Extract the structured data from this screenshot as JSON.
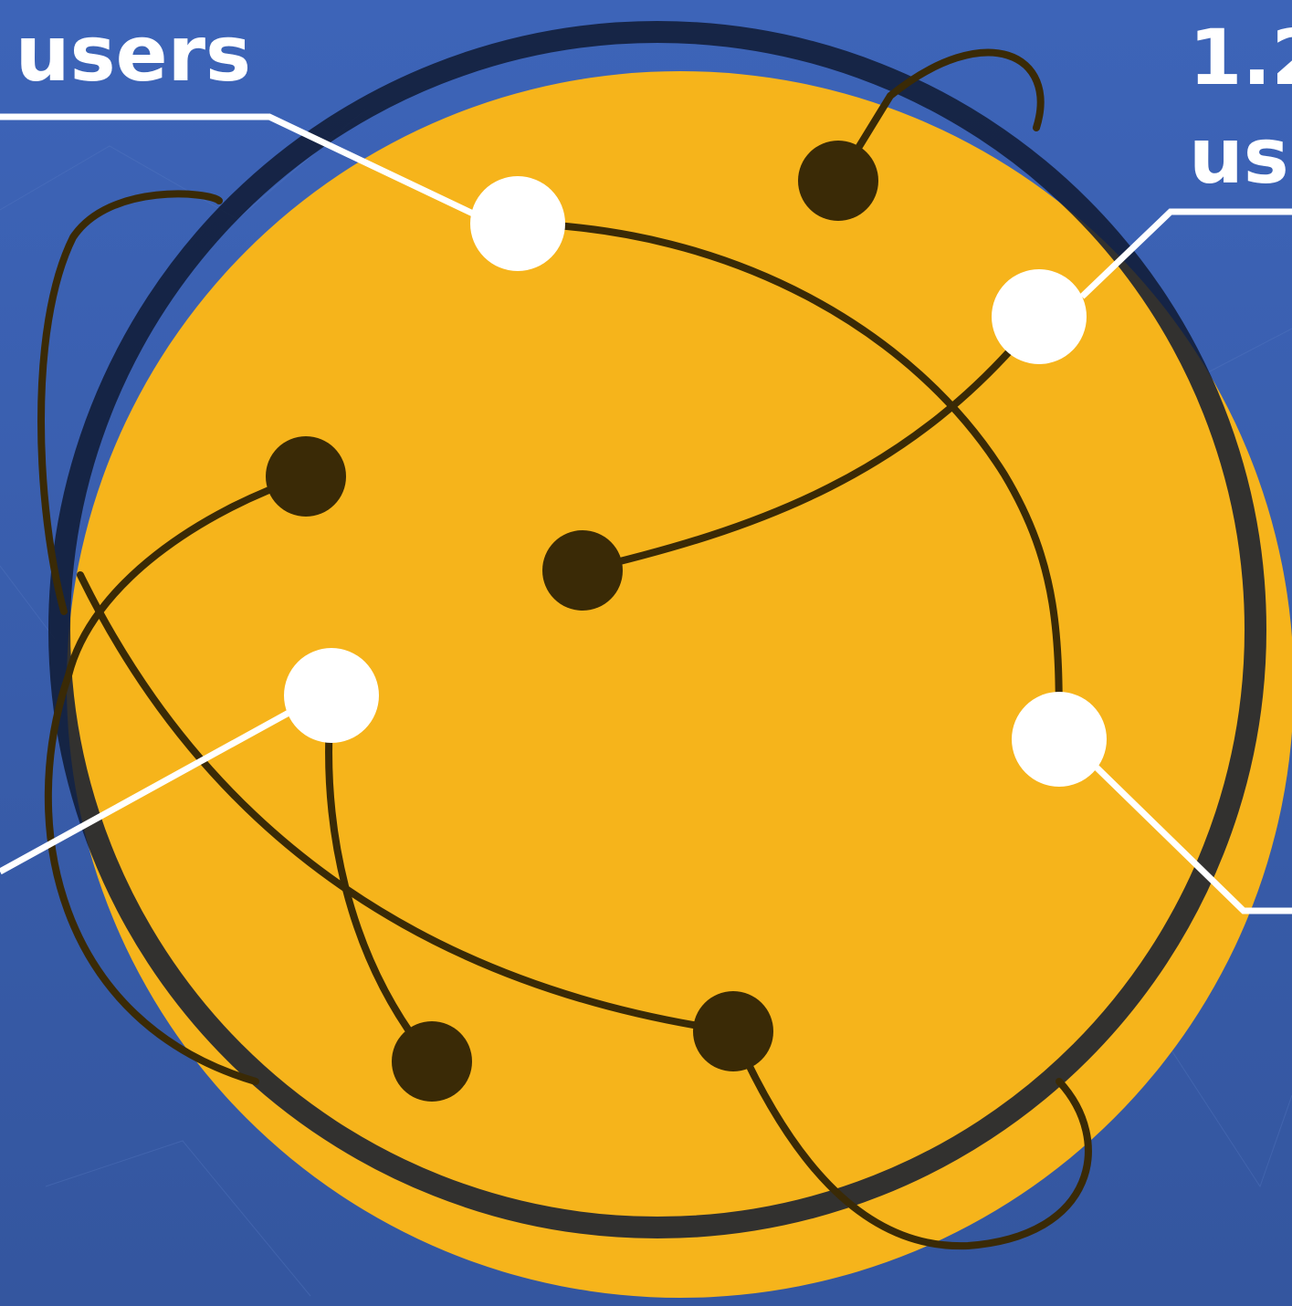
{
  "callouts": [
    {
      "text": "e users"
    },
    {
      "lines": [
        "1.2",
        "use"
      ]
    }
  ]
}
